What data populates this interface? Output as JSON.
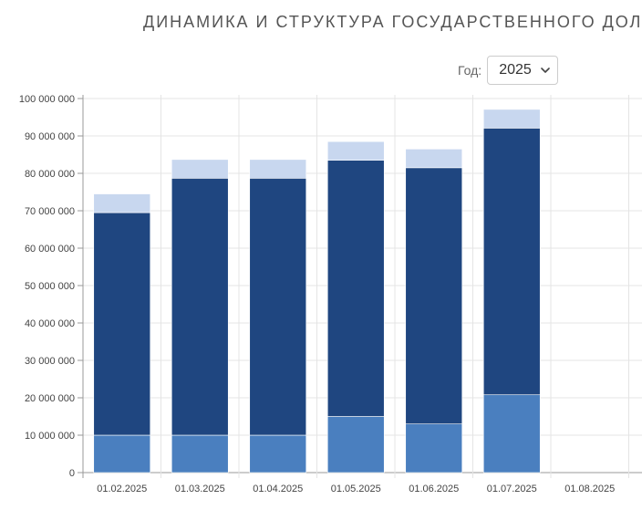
{
  "header": {
    "title": "ДИНАМИКА И СТРУКТУРА ГОСУДАРСТВЕННОГО ДОЛГА"
  },
  "filter": {
    "year_label": "Год:",
    "year_value": "2025",
    "icon": "chevron-down-icon"
  },
  "chart_data": {
    "type": "bar",
    "stacked": true,
    "categories": [
      "01.02.2025",
      "01.03.2025",
      "01.04.2025",
      "01.05.2025",
      "01.06.2025",
      "01.07.2025",
      "01.08.2025"
    ],
    "series": [
      {
        "color": "#4a7fbf",
        "values": [
          10000000,
          10000000,
          10000000,
          15000000,
          13000000,
          20800000,
          null
        ]
      },
      {
        "color": "#1f4680",
        "values": [
          59500000,
          68700000,
          68700000,
          68500000,
          68500000,
          71300000,
          null
        ]
      },
      {
        "color": "#c8d7ef",
        "values": [
          5000000,
          5000000,
          5000000,
          5000000,
          5000000,
          5000000,
          null
        ]
      }
    ],
    "ylim": [
      0,
      100000000
    ],
    "yticks": [
      0,
      10000000,
      20000000,
      30000000,
      40000000,
      50000000,
      60000000,
      70000000,
      80000000,
      90000000,
      100000000
    ],
    "ytick_labels": [
      "0",
      "10 000 000",
      "20 000 000",
      "30 000 000",
      "40 000 000",
      "50 000 000",
      "60 000 000",
      "70 000 000",
      "80 000 000",
      "90 000 000",
      "100 000 000"
    ],
    "grid": true,
    "xlabel": "",
    "ylabel": ""
  }
}
